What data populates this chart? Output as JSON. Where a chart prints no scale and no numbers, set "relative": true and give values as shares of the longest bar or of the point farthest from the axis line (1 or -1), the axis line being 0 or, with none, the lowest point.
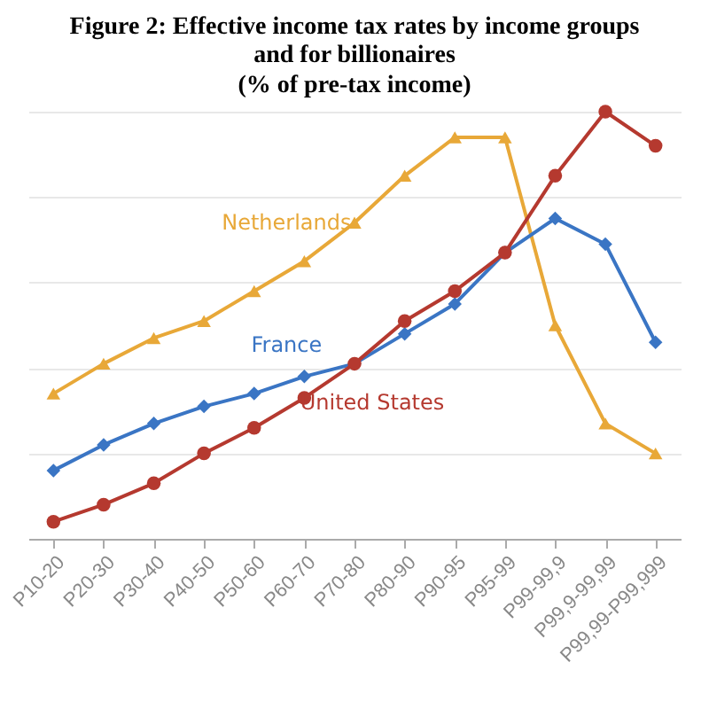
{
  "chart_data": {
    "type": "line",
    "title": "Figure 2: Effective income tax rates by income groups and for billionaires",
    "subtitle": "(% of pre-tax income)",
    "relative": true,
    "grid": "y",
    "legend": false,
    "line_style": "solid",
    "categories": [
      "P10-20",
      "P20-30",
      "P30-40",
      "P40-50",
      "P50-60",
      "P60-70",
      "P70-80",
      "P80-90",
      "P90-95",
      "P95-99",
      "P99-99,9",
      "P99,9-99,99",
      "P99,99-P99,999"
    ],
    "series": [
      {
        "name": "Netherlands",
        "color": "#e8a838",
        "marker": "triangle",
        "values": [
          0.34,
          0.41,
          0.47,
          0.51,
          0.58,
          0.65,
          0.74,
          0.85,
          0.94,
          0.94,
          0.5,
          0.27,
          0.2
        ]
      },
      {
        "name": "France",
        "color": "#3a75c4",
        "marker": "diamond",
        "values": [
          0.16,
          0.22,
          0.27,
          0.31,
          0.34,
          0.38,
          0.41,
          0.48,
          0.55,
          0.67,
          0.75,
          0.69,
          0.46
        ]
      },
      {
        "name": "United States",
        "color": "#b5392f",
        "marker": "circle",
        "values": [
          0.04,
          0.08,
          0.13,
          0.2,
          0.26,
          0.33,
          0.41,
          0.51,
          0.58,
          0.67,
          0.85,
          1,
          0.92
        ]
      }
    ]
  }
}
